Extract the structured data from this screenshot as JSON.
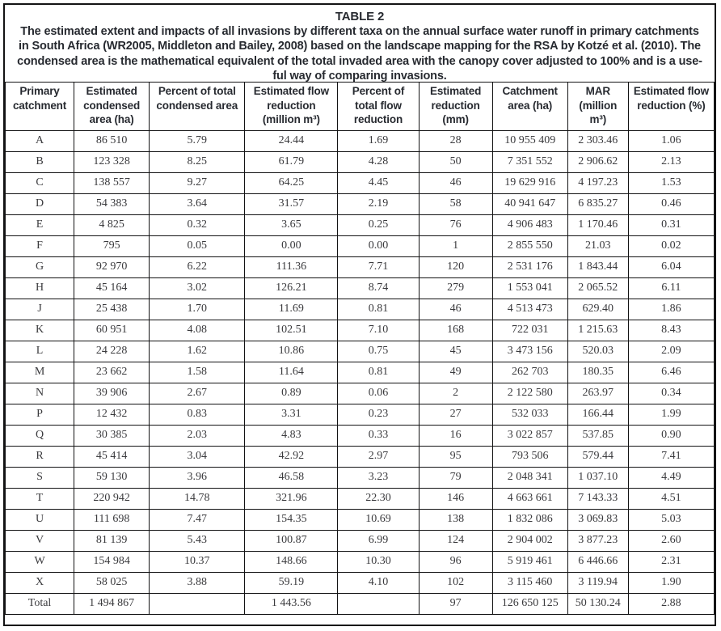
{
  "caption": {
    "table_number": "TABLE 2",
    "lines": [
      "The estimated extent and impacts of all invasions by different taxa on the annual surface water runoff in primary catchments",
      "in South Africa (WR2005, Middleton and Bailey, 2008) based on the landscape mapping for the RSA by Kotzé et al. (2010). The",
      "condensed area is the mathematical equivalent of the total invaded area with the canopy cover adjusted to 100% and is a use-",
      "ful way of comparing invasions."
    ]
  },
  "table": {
    "headers": [
      "Primary catchment",
      "Estimated condensed area (ha)",
      "Percent of total condensed area",
      "Estimated flow reduction (million m³)",
      "Percent of total flow reduction",
      "Estimated reduction (mm)",
      "Catchment area (ha)",
      "MAR (million m³)",
      "Estimated flow reduction (%)"
    ],
    "rows": [
      [
        "A",
        "86 510",
        "5.79",
        "24.44",
        "1.69",
        "28",
        "10 955 409",
        "2 303.46",
        "1.06"
      ],
      [
        "B",
        "123 328",
        "8.25",
        "61.79",
        "4.28",
        "50",
        "7 351 552",
        "2 906.62",
        "2.13"
      ],
      [
        "C",
        "138 557",
        "9.27",
        "64.25",
        "4.45",
        "46",
        "19 629 916",
        "4 197.23",
        "1.53"
      ],
      [
        "D",
        "54 383",
        "3.64",
        "31.57",
        "2.19",
        "58",
        "40 941 647",
        "6 835.27",
        "0.46"
      ],
      [
        "E",
        "4 825",
        "0.32",
        "3.65",
        "0.25",
        "76",
        "4 906 483",
        "1 170.46",
        "0.31"
      ],
      [
        "F",
        "795",
        "0.05",
        "0.00",
        "0.00",
        "1",
        "2 855 550",
        "21.03",
        "0.02"
      ],
      [
        "G",
        "92 970",
        "6.22",
        "111.36",
        "7.71",
        "120",
        "2 531 176",
        "1 843.44",
        "6.04"
      ],
      [
        "H",
        "45 164",
        "3.02",
        "126.21",
        "8.74",
        "279",
        "1 553 041",
        "2 065.52",
        "6.11"
      ],
      [
        "J",
        "25 438",
        "1.70",
        "11.69",
        "0.81",
        "46",
        "4 513 473",
        "629.40",
        "1.86"
      ],
      [
        "K",
        "60 951",
        "4.08",
        "102.51",
        "7.10",
        "168",
        "722 031",
        "1 215.63",
        "8.43"
      ],
      [
        "L",
        "24 228",
        "1.62",
        "10.86",
        "0.75",
        "45",
        "3 473 156",
        "520.03",
        "2.09"
      ],
      [
        "M",
        "23 662",
        "1.58",
        "11.64",
        "0.81",
        "49",
        "262 703",
        "180.35",
        "6.46"
      ],
      [
        "N",
        "39 906",
        "2.67",
        "0.89",
        "0.06",
        "2",
        "2 122 580",
        "263.97",
        "0.34"
      ],
      [
        "P",
        "12 432",
        "0.83",
        "3.31",
        "0.23",
        "27",
        "532 033",
        "166.44",
        "1.99"
      ],
      [
        "Q",
        "30 385",
        "2.03",
        "4.83",
        "0.33",
        "16",
        "3 022 857",
        "537.85",
        "0.90"
      ],
      [
        "R",
        "45 414",
        "3.04",
        "42.92",
        "2.97",
        "95",
        "793 506",
        "579.44",
        "7.41"
      ],
      [
        "S",
        "59 130",
        "3.96",
        "46.58",
        "3.23",
        "79",
        "2 048 341",
        "1 037.10",
        "4.49"
      ],
      [
        "T",
        "220 942",
        "14.78",
        "321.96",
        "22.30",
        "146",
        "4 663 661",
        "7 143.33",
        "4.51"
      ],
      [
        "U",
        "111 698",
        "7.47",
        "154.35",
        "10.69",
        "138",
        "1 832 086",
        "3 069.83",
        "5.03"
      ],
      [
        "V",
        "81 139",
        "5.43",
        "100.87",
        "6.99",
        "124",
        "2 904 002",
        "3 877.23",
        "2.60"
      ],
      [
        "W",
        "154 984",
        "10.37",
        "148.66",
        "10.30",
        "96",
        "5 919 461",
        "6 446.66",
        "2.31"
      ],
      [
        "X",
        "58 025",
        "3.88",
        "59.19",
        "4.10",
        "102",
        "3 115 460",
        "3 119.94",
        "1.90"
      ],
      [
        "Total",
        "1 494 867",
        "",
        "1 443.56",
        "",
        "97",
        "126 650 125",
        "50 130.24",
        "2.88"
      ]
    ]
  }
}
